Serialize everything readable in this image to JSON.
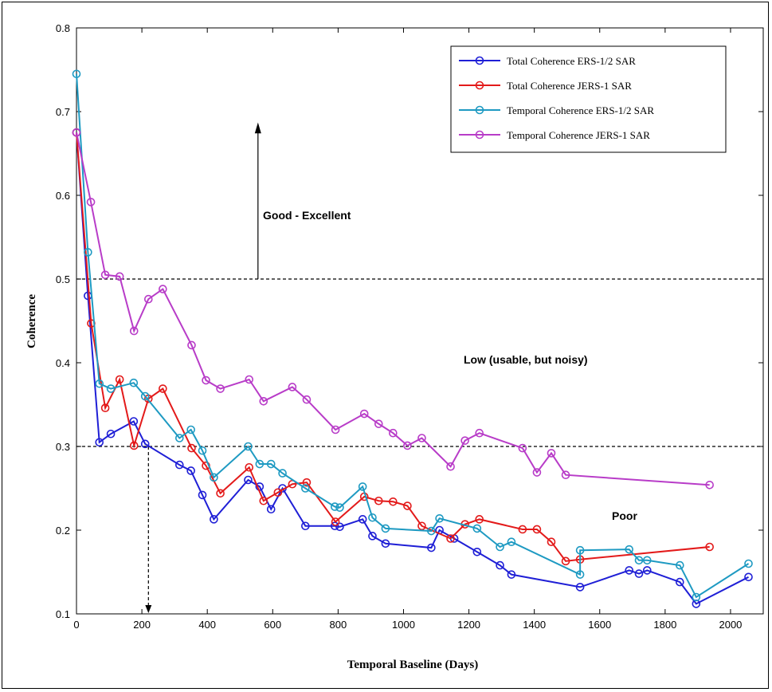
{
  "chart_data": {
    "type": "line",
    "title": "",
    "xlabel": "Temporal Baseline (Days)",
    "ylabel": "Coherence",
    "xlim": [
      0,
      2100
    ],
    "ylim": [
      0.1,
      0.8
    ],
    "xticks": [
      "0",
      "200",
      "400",
      "600",
      "800",
      "1000",
      "1200",
      "1400",
      "1600",
      "1800",
      "2000"
    ],
    "yticks": [
      "0.1",
      "0.2",
      "0.3",
      "0.4",
      "0.5",
      "0.6",
      "0.7",
      "0.8"
    ],
    "grid": false,
    "legend_position": "top-right",
    "thresholds": [
      0.5,
      0.3
    ],
    "annotations": [
      "Good - Excellent",
      "Low (usable, but noisy)",
      "Poor"
    ],
    "arrow_marker_x": 220,
    "series": [
      {
        "name": "Total Coherence ERS-1/2 SAR",
        "color": "#1f1fd6",
        "points": [
          [
            0,
            0.675
          ],
          [
            35,
            0.48
          ],
          [
            70,
            0.305
          ],
          [
            105,
            0.315
          ],
          [
            175,
            0.33
          ],
          [
            210,
            0.303
          ],
          [
            315,
            0.278
          ],
          [
            350,
            0.271
          ],
          [
            385,
            0.242
          ],
          [
            420,
            0.213
          ],
          [
            525,
            0.26
          ],
          [
            560,
            0.252
          ],
          [
            595,
            0.225
          ],
          [
            630,
            0.25
          ],
          [
            700,
            0.205
          ],
          [
            790,
            0.205
          ],
          [
            805,
            0.204
          ],
          [
            875,
            0.213
          ],
          [
            905,
            0.193
          ],
          [
            945,
            0.184
          ],
          [
            1085,
            0.179
          ],
          [
            1110,
            0.2
          ],
          [
            1155,
            0.19
          ],
          [
            1225,
            0.174
          ],
          [
            1295,
            0.158
          ],
          [
            1330,
            0.147
          ],
          [
            1540,
            0.132
          ],
          [
            1690,
            0.152
          ],
          [
            1720,
            0.148
          ],
          [
            1745,
            0.152
          ],
          [
            1845,
            0.138
          ],
          [
            1895,
            0.112
          ],
          [
            2055,
            0.144
          ]
        ]
      },
      {
        "name": "Total Coherence JERS-1 SAR",
        "color": "#e31a1a",
        "points": [
          [
            0,
            0.675
          ],
          [
            45,
            0.447
          ],
          [
            88,
            0.346
          ],
          [
            132,
            0.38
          ],
          [
            176,
            0.301
          ],
          [
            220,
            0.357
          ],
          [
            264,
            0.369
          ],
          [
            352,
            0.298
          ],
          [
            396,
            0.277
          ],
          [
            440,
            0.244
          ],
          [
            528,
            0.275
          ],
          [
            572,
            0.235
          ],
          [
            616,
            0.245
          ],
          [
            660,
            0.255
          ],
          [
            704,
            0.257
          ],
          [
            792,
            0.21
          ],
          [
            880,
            0.24
          ],
          [
            924,
            0.235
          ],
          [
            968,
            0.234
          ],
          [
            1012,
            0.229
          ],
          [
            1056,
            0.205
          ],
          [
            1144,
            0.19
          ],
          [
            1188,
            0.207
          ],
          [
            1232,
            0.213
          ],
          [
            1364,
            0.201
          ],
          [
            1408,
            0.201
          ],
          [
            1452,
            0.186
          ],
          [
            1496,
            0.163
          ],
          [
            1540,
            0.165
          ],
          [
            1936,
            0.18
          ]
        ]
      },
      {
        "name": "Temporal Coherence ERS-1/2 SAR",
        "color": "#1e9ac2",
        "points": [
          [
            0,
            0.745
          ],
          [
            35,
            0.532
          ],
          [
            70,
            0.375
          ],
          [
            105,
            0.369
          ],
          [
            175,
            0.376
          ],
          [
            210,
            0.36
          ],
          [
            315,
            0.31
          ],
          [
            350,
            0.32
          ],
          [
            385,
            0.295
          ],
          [
            420,
            0.263
          ],
          [
            525,
            0.3
          ],
          [
            560,
            0.279
          ],
          [
            595,
            0.279
          ],
          [
            630,
            0.268
          ],
          [
            700,
            0.25
          ],
          [
            790,
            0.228
          ],
          [
            805,
            0.227
          ],
          [
            875,
            0.252
          ],
          [
            905,
            0.215
          ],
          [
            945,
            0.202
          ],
          [
            1085,
            0.199
          ],
          [
            1110,
            0.214
          ],
          [
            1225,
            0.202
          ],
          [
            1295,
            0.18
          ],
          [
            1330,
            0.186
          ],
          [
            1540,
            0.147
          ],
          [
            1540,
            0.176
          ],
          [
            1690,
            0.177
          ],
          [
            1720,
            0.164
          ],
          [
            1745,
            0.164
          ],
          [
            1845,
            0.158
          ],
          [
            1895,
            0.12
          ],
          [
            2055,
            0.16
          ]
        ]
      },
      {
        "name": "Temporal Coherence JERS-1 SAR",
        "color": "#b83cc8",
        "points": [
          [
            0,
            0.675
          ],
          [
            44,
            0.592
          ],
          [
            88,
            0.505
          ],
          [
            132,
            0.503
          ],
          [
            176,
            0.438
          ],
          [
            220,
            0.476
          ],
          [
            264,
            0.488
          ],
          [
            352,
            0.421
          ],
          [
            396,
            0.379
          ],
          [
            440,
            0.369
          ],
          [
            528,
            0.38
          ],
          [
            572,
            0.354
          ],
          [
            660,
            0.371
          ],
          [
            704,
            0.356
          ],
          [
            792,
            0.32
          ],
          [
            880,
            0.339
          ],
          [
            924,
            0.327
          ],
          [
            968,
            0.316
          ],
          [
            1012,
            0.301
          ],
          [
            1056,
            0.31
          ],
          [
            1144,
            0.276
          ],
          [
            1188,
            0.307
          ],
          [
            1232,
            0.316
          ],
          [
            1364,
            0.298
          ],
          [
            1408,
            0.269
          ],
          [
            1452,
            0.292
          ],
          [
            1496,
            0.266
          ],
          [
            1936,
            0.254
          ]
        ]
      }
    ]
  }
}
